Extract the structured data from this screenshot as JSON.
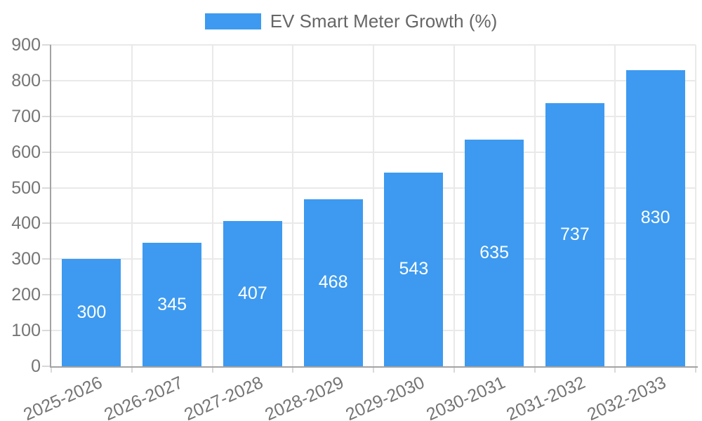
{
  "chart_data": {
    "type": "bar",
    "title": "EV Smart Meter Growth (%)",
    "categories": [
      "2025-2026",
      "2026-2027",
      "2027-2028",
      "2028-2029",
      "2029-2030",
      "2030-2031",
      "2031-2032",
      "2032-2033"
    ],
    "values": [
      300,
      345,
      407,
      468,
      543,
      635,
      737,
      830
    ],
    "bar_labels": [
      "300",
      "345",
      "407",
      "468",
      "543",
      "635",
      "737",
      "830"
    ],
    "xlabel": "",
    "ylabel": "",
    "ylim": [
      0,
      900
    ],
    "yticks": [
      0,
      100,
      200,
      300,
      400,
      500,
      600,
      700,
      800,
      900
    ],
    "grid": true,
    "legend_position": "top-center",
    "bar_color": "#3d9af0",
    "bar_label_color": "#ffffff",
    "axis_text_color": "#757575",
    "legend_text_color": "#666666",
    "gridline_color": "#e9e9e9",
    "tick_color": "#d9d9d9",
    "axis_line_color": "#a3a3a3"
  }
}
